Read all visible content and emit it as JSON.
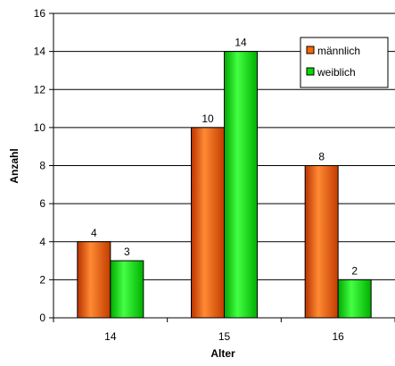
{
  "chart_data": {
    "type": "bar",
    "categories": [
      "14",
      "15",
      "16"
    ],
    "series": [
      {
        "name": "männlich",
        "values": [
          4,
          10,
          8
        ],
        "color": "#ff6600"
      },
      {
        "name": "weiblich",
        "values": [
          3,
          14,
          2
        ],
        "color": "#00dd00"
      }
    ],
    "xlabel": "Alter",
    "ylabel": "Anzahl",
    "ylim": [
      0,
      16
    ],
    "yticks": [
      0,
      2,
      4,
      6,
      8,
      10,
      12,
      14,
      16
    ],
    "grid": true,
    "legend_position": "top-right"
  }
}
